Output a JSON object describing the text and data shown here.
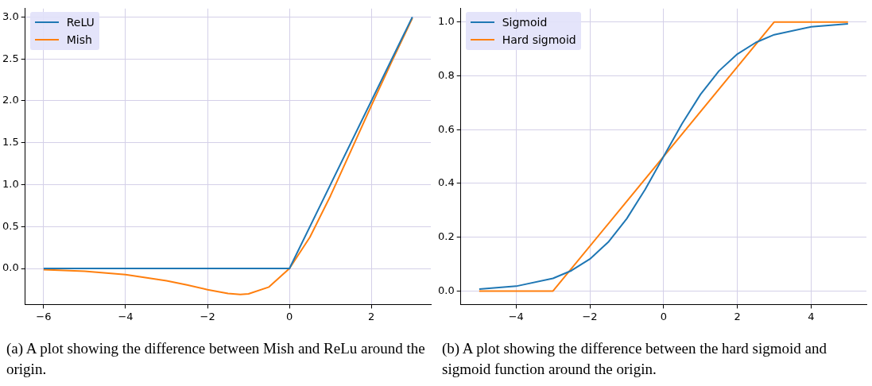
{
  "chart_data": [
    {
      "type": "line",
      "xlim": [
        -6.45,
        3.45
      ],
      "ylim": [
        -0.43,
        3.1
      ],
      "xticks": [
        {
          "value": -6,
          "label": "−6"
        },
        {
          "value": -4,
          "label": "−4"
        },
        {
          "value": -2,
          "label": "−2"
        },
        0,
        2
      ],
      "yticks": [
        {
          "value": 0,
          "label": "0.0"
        },
        0.5,
        {
          "value": 1,
          "label": "1.0"
        },
        1.5,
        {
          "value": 2,
          "label": "2.0"
        },
        2.5,
        {
          "value": 3,
          "label": "3.0"
        }
      ],
      "grid": true,
      "legend": "top left",
      "annotations": [
        "(a) A plot showing the difference between Mish and ReLu around the origin."
      ],
      "series": [
        {
          "name": "ReLU",
          "color": "#1f77b4",
          "x": [
            -6,
            0,
            3
          ],
          "values": [
            0,
            0,
            3
          ]
        },
        {
          "name": "Mish",
          "color": "#ff7f0e",
          "x": [
            -6,
            -5,
            -4,
            -3,
            -2.5,
            -2,
            -1.5,
            -1.2,
            -1,
            -0.5,
            0,
            0.5,
            1,
            1.5,
            2,
            2.5,
            3
          ],
          "values": [
            -0.015,
            -0.034,
            -0.073,
            -0.146,
            -0.197,
            -0.253,
            -0.298,
            -0.309,
            -0.303,
            -0.221,
            0,
            0.375,
            0.865,
            1.403,
            1.944,
            2.471,
            2.987
          ]
        }
      ]
    },
    {
      "type": "line",
      "xlim": [
        -5.5,
        5.5
      ],
      "ylim": [
        -0.05,
        1.05
      ],
      "xticks": [
        {
          "value": -4,
          "label": "−4"
        },
        {
          "value": -2,
          "label": "−2"
        },
        0,
        2,
        4
      ],
      "yticks": [
        {
          "value": 0,
          "label": "0.0"
        },
        0.2,
        0.4,
        0.6,
        0.8,
        {
          "value": 1,
          "label": "1.0"
        }
      ],
      "grid": true,
      "legend": "top left",
      "annotations": [
        "(b) A plot showing the difference between the hard sigmoid and sigmoid function around the origin."
      ],
      "series": [
        {
          "name": "Sigmoid",
          "color": "#1f77b4",
          "x": [
            -5,
            -4,
            -3,
            -2.5,
            -2,
            -1.5,
            -1,
            -0.5,
            0,
            0.5,
            1,
            1.5,
            2,
            2.5,
            3,
            4,
            5
          ],
          "values": [
            0.007,
            0.018,
            0.047,
            0.076,
            0.119,
            0.182,
            0.269,
            0.378,
            0.5,
            0.622,
            0.731,
            0.818,
            0.881,
            0.924,
            0.953,
            0.982,
            0.993
          ]
        },
        {
          "name": "Hard sigmoid",
          "color": "#ff7f0e",
          "x": [
            -5,
            -3,
            3,
            5
          ],
          "values": [
            0,
            0,
            1,
            1
          ]
        }
      ]
    }
  ]
}
